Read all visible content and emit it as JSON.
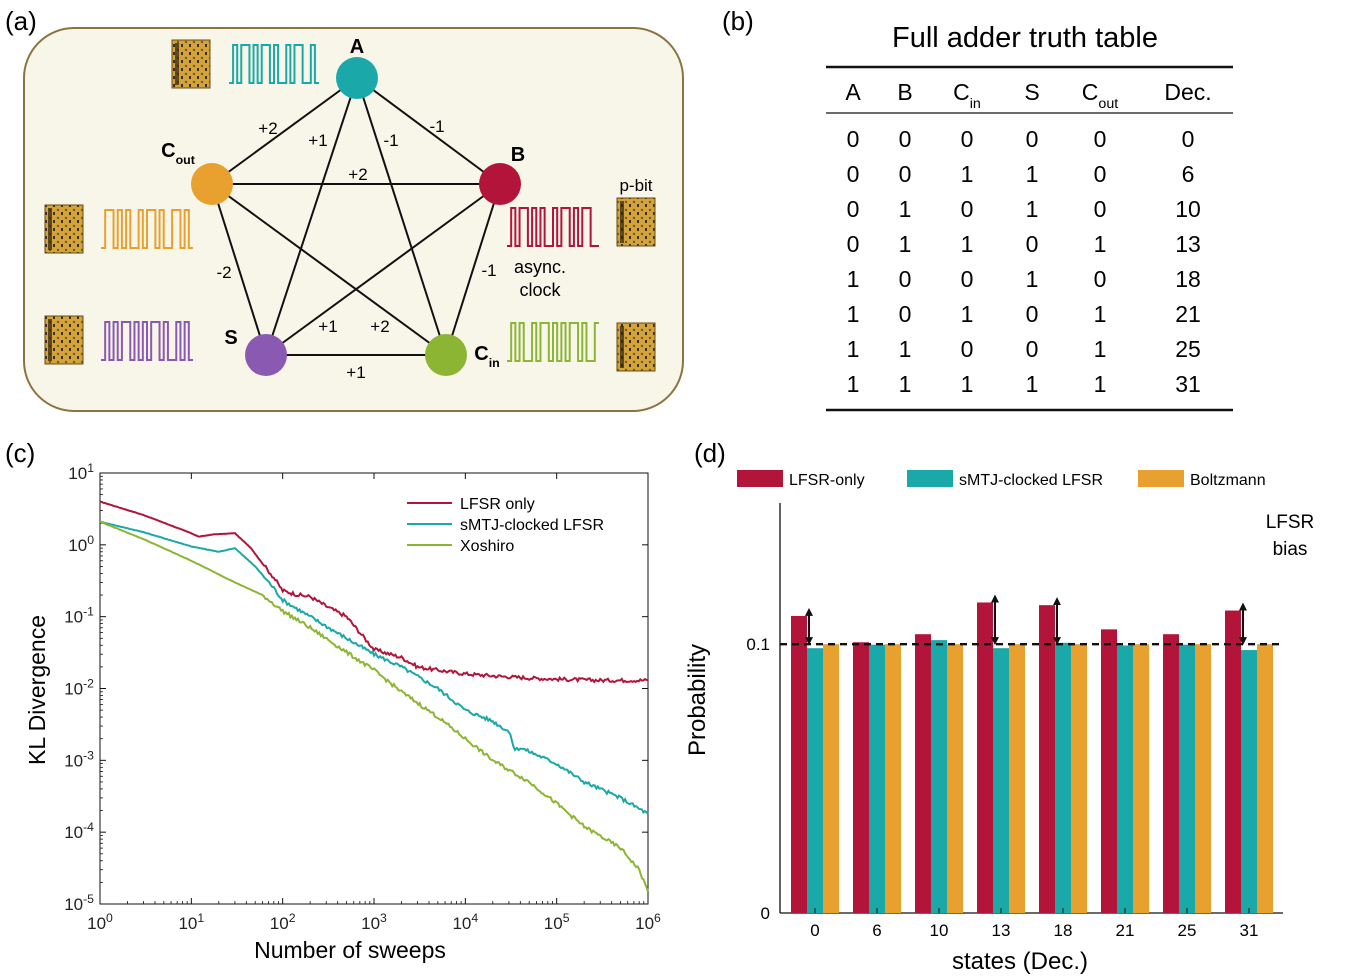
{
  "panel_labels": {
    "a": "(a)",
    "b": "(b)",
    "c": "(c)",
    "d": "(d)"
  },
  "colors": {
    "teal": "#1aa9a8",
    "red": "#b3143a",
    "orange": "#e8a12e",
    "green": "#8db534",
    "purple": "#8a5ab2",
    "bg": "#f8f6e9",
    "border": "#8c7440"
  },
  "network": {
    "nodes": [
      {
        "id": "A",
        "label": "A",
        "sub": "",
        "color": "#1aa9a8"
      },
      {
        "id": "B",
        "label": "B",
        "sub": "",
        "color": "#b3143a"
      },
      {
        "id": "Cin",
        "label": "C",
        "sub": "in",
        "color": "#8db534"
      },
      {
        "id": "S",
        "label": "S",
        "sub": "",
        "color": "#8a5ab2"
      },
      {
        "id": "Cout",
        "label": "C",
        "sub": "out",
        "color": "#e8a12e"
      }
    ],
    "edges": [
      {
        "from": "A",
        "to": "Cout",
        "weight": "+2"
      },
      {
        "from": "A",
        "to": "S",
        "weight": "+1"
      },
      {
        "from": "A",
        "to": "Cin",
        "weight": "-1"
      },
      {
        "from": "A",
        "to": "B",
        "weight": "-1"
      },
      {
        "from": "Cout",
        "to": "B",
        "weight": "+2"
      },
      {
        "from": "Cout",
        "to": "S",
        "weight": "-2"
      },
      {
        "from": "B",
        "to": "Cin",
        "weight": "-1"
      },
      {
        "from": "B",
        "to": "S",
        "weight": "+1"
      },
      {
        "from": "Cout",
        "to": "Cin",
        "weight": "+2"
      },
      {
        "from": "S",
        "to": "Cin",
        "weight": "+1"
      }
    ],
    "pbit_label": "p-bit",
    "clock_label_line1": "async.",
    "clock_label_line2": "clock"
  },
  "truth_table": {
    "title": "Full adder truth table",
    "headers": [
      {
        "main": "A",
        "sub": ""
      },
      {
        "main": "B",
        "sub": ""
      },
      {
        "main": "C",
        "sub": "in"
      },
      {
        "main": "S",
        "sub": ""
      },
      {
        "main": "C",
        "sub": "out"
      },
      {
        "main": "Dec.",
        "sub": ""
      }
    ],
    "rows": [
      [
        "0",
        "0",
        "0",
        "0",
        "0",
        "0"
      ],
      [
        "0",
        "0",
        "1",
        "1",
        "0",
        "6"
      ],
      [
        "0",
        "1",
        "0",
        "1",
        "0",
        "10"
      ],
      [
        "0",
        "1",
        "1",
        "0",
        "1",
        "13"
      ],
      [
        "1",
        "0",
        "0",
        "1",
        "0",
        "18"
      ],
      [
        "1",
        "0",
        "1",
        "0",
        "1",
        "21"
      ],
      [
        "1",
        "1",
        "0",
        "0",
        "1",
        "25"
      ],
      [
        "1",
        "1",
        "1",
        "1",
        "1",
        "31"
      ]
    ]
  },
  "chart_data": [
    {
      "type": "line",
      "xscale": "log",
      "yscale": "log",
      "xlabel": "Number of sweeps",
      "ylabel": "KL Divergence",
      "xlim": [
        1,
        1000000
      ],
      "ylim": [
        1e-05,
        10
      ],
      "x_ticks": [
        {
          "base": "10",
          "exp": "0"
        },
        {
          "base": "10",
          "exp": "1"
        },
        {
          "base": "10",
          "exp": "2"
        },
        {
          "base": "10",
          "exp": "3"
        },
        {
          "base": "10",
          "exp": "4"
        },
        {
          "base": "10",
          "exp": "5"
        },
        {
          "base": "10",
          "exp": "6"
        }
      ],
      "y_ticks": [
        {
          "base": "10",
          "exp": "-5"
        },
        {
          "base": "10",
          "exp": "-4"
        },
        {
          "base": "10",
          "exp": "-3"
        },
        {
          "base": "10",
          "exp": "-2"
        },
        {
          "base": "10",
          "exp": "-1"
        },
        {
          "base": "10",
          "exp": "0"
        },
        {
          "base": "10",
          "exp": "1"
        }
      ],
      "legend_position": "top-right",
      "series": [
        {
          "name": "LFSR only",
          "color": "#b3143a",
          "x": [
            1,
            3,
            10,
            12,
            18,
            30,
            45,
            60,
            80,
            100,
            150,
            200,
            300,
            500,
            700,
            1000,
            2000,
            3000,
            5000,
            10000,
            20000,
            50000,
            100000,
            300000,
            1000000
          ],
          "y": [
            4,
            2.6,
            1.45,
            1.3,
            1.4,
            1.45,
            0.9,
            0.55,
            0.35,
            0.23,
            0.2,
            0.19,
            0.14,
            0.1,
            0.06,
            0.035,
            0.027,
            0.02,
            0.018,
            0.016,
            0.015,
            0.014,
            0.0135,
            0.013,
            0.013
          ]
        },
        {
          "name": "sMTJ-clocked LFSR",
          "color": "#1aa9a8",
          "x": [
            1,
            3,
            10,
            20,
            30,
            50,
            80,
            100,
            200,
            500,
            1000,
            2000,
            5000,
            10000,
            20000,
            30000,
            35000,
            40000,
            60000,
            100000,
            200000,
            500000,
            1000000
          ],
          "y": [
            2.1,
            1.5,
            0.95,
            0.8,
            0.9,
            0.5,
            0.25,
            0.17,
            0.1,
            0.05,
            0.03,
            0.02,
            0.01,
            0.005,
            0.0035,
            0.0025,
            0.0014,
            0.0015,
            0.0012,
            0.0009,
            0.0005,
            0.0003,
            0.00018
          ]
        },
        {
          "name": "Xoshiro",
          "color": "#8db534",
          "x": [
            1,
            3,
            10,
            30,
            60,
            100,
            200,
            500,
            1000,
            2000,
            5000,
            10000,
            20000,
            50000,
            100000,
            200000,
            500000,
            800000,
            1000000
          ],
          "y": [
            2.1,
            1.2,
            0.6,
            0.3,
            0.2,
            0.12,
            0.07,
            0.032,
            0.018,
            0.009,
            0.004,
            0.002,
            0.001,
            0.0005,
            0.00025,
            0.00012,
            6e-05,
            3e-05,
            1.5e-05
          ]
        }
      ]
    },
    {
      "type": "bar",
      "xlabel": "states (Dec.)",
      "ylabel": "Probability",
      "categories": [
        "0",
        "6",
        "10",
        "13",
        "18",
        "21",
        "25",
        "31"
      ],
      "ylim": [
        0,
        0.1525
      ],
      "y_tick_labels": [
        {
          "value": 0,
          "label": "0"
        },
        {
          "value": 0.1,
          "label": "0.1"
        }
      ],
      "reference_line": 0.1,
      "annotation_line1": "LFSR",
      "annotation_line2": "bias",
      "bias_arrow_categories": [
        "0",
        "13",
        "18",
        "31"
      ],
      "legend_position": "top",
      "series": [
        {
          "name": "LFSR-only",
          "color": "#b3143a",
          "values": [
            0.1105,
            0.1007,
            0.1037,
            0.1155,
            0.1145,
            0.1055,
            0.1037,
            0.1125
          ]
        },
        {
          "name": "sMTJ-clocked LFSR",
          "color": "#1aa9a8",
          "values": [
            0.0985,
            0.0998,
            0.1015,
            0.0985,
            0.1005,
            0.0995,
            0.0998,
            0.0978
          ]
        },
        {
          "name": "Boltzmann",
          "color": "#e8a12e",
          "values": [
            0.1,
            0.1,
            0.1,
            0.1,
            0.1,
            0.1,
            0.1,
            0.1
          ]
        }
      ]
    }
  ]
}
